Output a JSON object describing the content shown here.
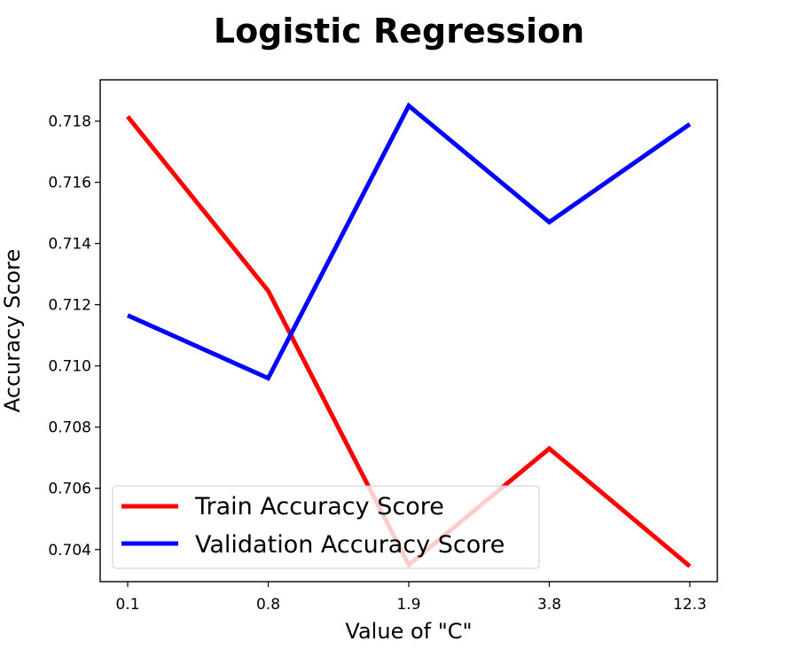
{
  "chart_data": {
    "type": "line",
    "title": "Logistic Regression",
    "xlabel": "Value of \"C\"",
    "ylabel": "Accuracy Score",
    "categories": [
      "0.1",
      "0.8",
      "1.9",
      "3.8",
      "12.3"
    ],
    "ylim": [
      0.70295,
      0.71935
    ],
    "yticks": [
      "0.704",
      "0.706",
      "0.708",
      "0.710",
      "0.712",
      "0.714",
      "0.716",
      "0.718"
    ],
    "grid": false,
    "legend_position": "lower-left",
    "series": [
      {
        "name": "Train Accuracy Score",
        "color": "#ff0000",
        "values": [
          0.71815,
          0.71245,
          0.7035,
          0.7073,
          0.70345
        ]
      },
      {
        "name": "Validation Accuracy Score",
        "color": "#0000ff",
        "values": [
          0.71165,
          0.7096,
          0.7185,
          0.7147,
          0.7179
        ]
      }
    ]
  }
}
